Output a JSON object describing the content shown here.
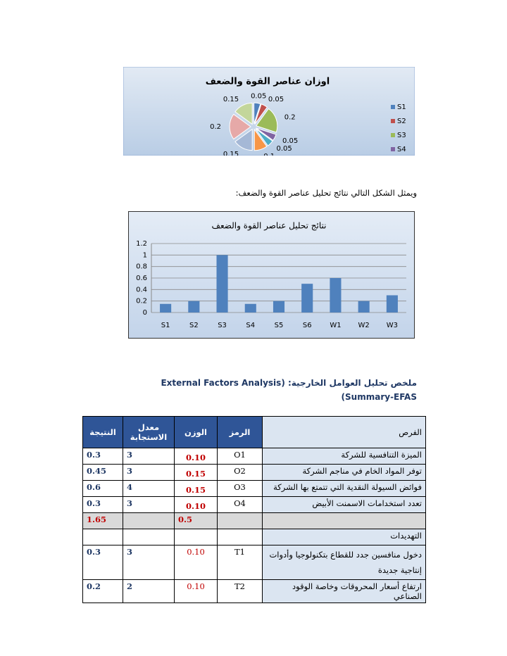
{
  "chart_data": [
    {
      "type": "pie",
      "title": "اوزان عناصر القوة والضعف",
      "categories": [
        "S1",
        "S2",
        "S3",
        "S4",
        null,
        null,
        null,
        null,
        null
      ],
      "values": [
        0.05,
        0.05,
        0.2,
        0.05,
        0.05,
        0.1,
        0.15,
        0.2,
        0.15
      ],
      "colors": [
        "#4f81bd",
        "#c0504d",
        "#9bbb59",
        "#8064a2",
        "#4bacc6",
        "#f79646",
        "#a5b8d6",
        "#e6a9a8",
        "#c3d69b"
      ]
    },
    {
      "type": "bar",
      "title": "نتائج تحليل عناصر القوة والضعف",
      "categories": [
        "S1",
        "S2",
        "S3",
        "S4",
        "S5",
        "S6",
        "W1",
        "W2",
        "W3"
      ],
      "values": [
        0.15,
        0.2,
        1,
        0.15,
        0.2,
        0.5,
        0.6,
        0.2,
        0.3
      ],
      "color": "#4f81bd",
      "ylim": [
        0,
        1.2
      ],
      "yticks": [
        0,
        0.2,
        0.4,
        0.6,
        0.8,
        1,
        1.2
      ],
      "grid": true
    }
  ],
  "paragraph": "ويمثل الشكل التالي نتائج تحليل عناصر القوة والضعف:",
  "heading": [
    "ملخص تحليل العوامل الخارجية:  (External Factors Analysis",
    "Summary-EFAS)"
  ],
  "table": {
    "header": [
      "الفرص",
      "الرمز",
      "الوزن",
      "معدل الاستجابة",
      "النتيجة"
    ],
    "rows": [
      [
        "الميزة التنافسية للشركة",
        "O1",
        "0.10",
        "3",
        "0.3"
      ],
      [
        "توفر المواد الخام  في مناجم الشركة",
        "O2",
        "0.15",
        "3",
        "0.45"
      ],
      [
        "فوائض السيولة  النقدية التي تتمتع بها الشركة",
        "O3",
        "0.15",
        "4",
        "0.6"
      ],
      [
        "تعدد استخدامات الاسمنت الأبيض",
        "O4",
        "0.10",
        "3",
        "0.3"
      ]
    ],
    "total": {
      "weight": "0.5",
      "result": "1.65"
    },
    "section": "التهديدات",
    "threat_rows": [
      [
        "دخول منافسين جدد للقطاع  بتكنولوجيا وأدوات إنتاجية جديدة",
        "T1",
        "0.10",
        "3",
        "0.3"
      ],
      [
        "ارتفاع أسعار المحروقات وخاصة الوقود الصناعي",
        "T2",
        "0.10",
        "2",
        "0.2"
      ]
    ]
  }
}
